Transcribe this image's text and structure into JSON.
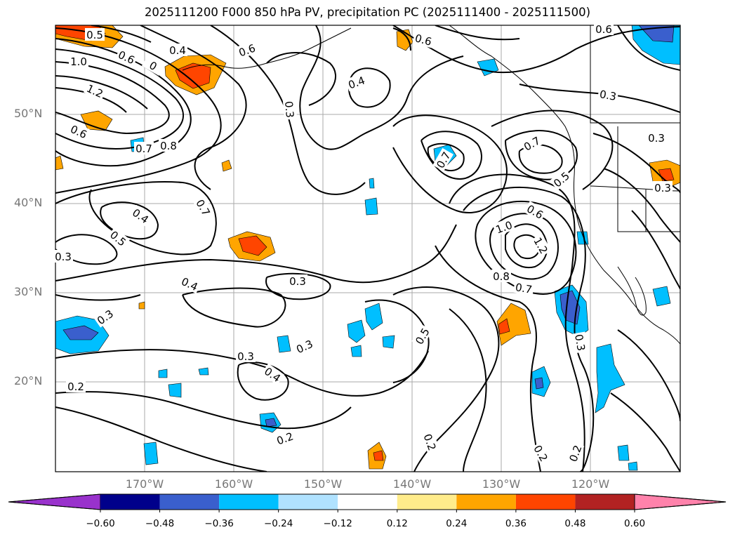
{
  "title": "2025111200 F000 850 hPa PV, precipitation PC (2025111400 - 2025111500)",
  "lat_labels": [
    "50°N",
    "40°N",
    "30°N",
    "20°N"
  ],
  "lon_labels": [
    "170°W",
    "160°W",
    "150°W",
    "140°W",
    "130°W",
    "120°W"
  ],
  "colorbar": {
    "ticks": [
      "−0.60",
      "−0.48",
      "−0.36",
      "−0.24",
      "−0.12",
      "0.12",
      "0.24",
      "0.36",
      "0.48",
      "0.60"
    ],
    "colors": [
      "#9932cc",
      "#00008b",
      "#3a5fcd",
      "#00bfff",
      "#b0e2ff",
      "#ffffff",
      "#ffec8b",
      "#ffa500",
      "#ff4500",
      "#b22222",
      "#ff82ab"
    ]
  },
  "contour_labels": [
    {
      "text": "0.5"
    },
    {
      "text": "0.4"
    },
    {
      "text": "0.6"
    },
    {
      "text": "1.0"
    },
    {
      "text": "0.6"
    },
    {
      "text": "0"
    },
    {
      "text": "1.2"
    },
    {
      "text": "0.6"
    },
    {
      "text": "0.7"
    },
    {
      "text": "0.8"
    },
    {
      "text": "0.3"
    },
    {
      "text": "0.4"
    },
    {
      "text": "0.6"
    },
    {
      "text": "0.6"
    },
    {
      "text": "0.3"
    },
    {
      "text": "0.3"
    },
    {
      "text": "0.7"
    },
    {
      "text": "0.7"
    },
    {
      "text": "0.5"
    },
    {
      "text": "0.4"
    },
    {
      "text": "0.5"
    },
    {
      "text": "0.3"
    },
    {
      "text": "0.7"
    },
    {
      "text": "0.4"
    },
    {
      "text": "0.3"
    },
    {
      "text": "1.0"
    },
    {
      "text": "1.2"
    },
    {
      "text": "0.6"
    },
    {
      "text": "0.8"
    },
    {
      "text": "0.7"
    },
    {
      "text": "0.3"
    },
    {
      "text": "0.5"
    },
    {
      "text": "0.3"
    },
    {
      "text": "0.3"
    },
    {
      "text": "0.4"
    },
    {
      "text": "0.3"
    },
    {
      "text": "0.2"
    },
    {
      "text": "0.2"
    },
    {
      "text": "0.2"
    },
    {
      "text": "0.2"
    },
    {
      "text": "0.2"
    },
    {
      "text": "0.3"
    }
  ]
}
